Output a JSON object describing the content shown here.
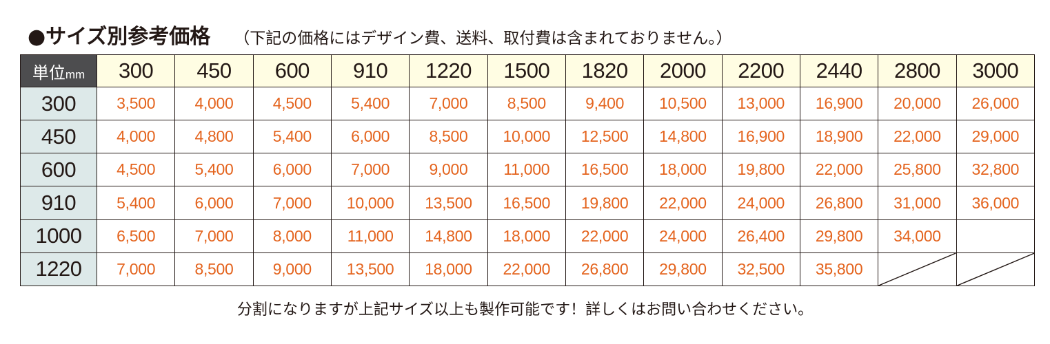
{
  "header": {
    "title": "●サイズ別参考価格",
    "note": "（下記の価格にはデザイン費、送料、取付費は含まれておりません。）"
  },
  "table": {
    "unit_label": "単位",
    "unit_suffix": "mm",
    "columns": [
      "300",
      "450",
      "600",
      "910",
      "1220",
      "1500",
      "1820",
      "2000",
      "2200",
      "2440",
      "2800",
      "3000"
    ],
    "rows": [
      {
        "label": "300",
        "prices": [
          "3,500",
          "4,000",
          "4,500",
          "5,400",
          "7,000",
          "8,500",
          "9,400",
          "10,500",
          "13,000",
          "16,900",
          "20,000",
          "26,000"
        ]
      },
      {
        "label": "450",
        "prices": [
          "4,000",
          "4,800",
          "5,400",
          "6,000",
          "8,500",
          "10,000",
          "12,500",
          "14,800",
          "16,900",
          "18,900",
          "22,000",
          "29,000"
        ]
      },
      {
        "label": "600",
        "prices": [
          "4,500",
          "5,400",
          "6,000",
          "7,000",
          "9,000",
          "11,000",
          "16,500",
          "18,000",
          "19,800",
          "22,000",
          "25,800",
          "32,800"
        ]
      },
      {
        "label": "910",
        "prices": [
          "5,400",
          "6,000",
          "7,000",
          "10,000",
          "13,500",
          "16,500",
          "19,800",
          "22,000",
          "24,000",
          "26,800",
          "31,000",
          "36,000"
        ]
      },
      {
        "label": "1000",
        "prices": [
          "6,500",
          "7,000",
          "8,000",
          "11,000",
          "14,800",
          "18,000",
          "22,000",
          "24,000",
          "26,400",
          "29,800",
          "34,000",
          ""
        ]
      },
      {
        "label": "1220",
        "prices": [
          "7,000",
          "8,500",
          "9,000",
          "13,500",
          "18,000",
          "22,000",
          "26,800",
          "29,800",
          "32,500",
          "35,800",
          null,
          null
        ]
      }
    ]
  },
  "footnote": "分割になりますが上記サイズ以上も製作可能です！詳しくはお問い合わせください。",
  "colors": {
    "price_text": "#e4641e",
    "column_header_bg": "#fffde3",
    "row_header_bg": "#dde9e9",
    "unit_cell_bg": "#4d4d4f"
  }
}
